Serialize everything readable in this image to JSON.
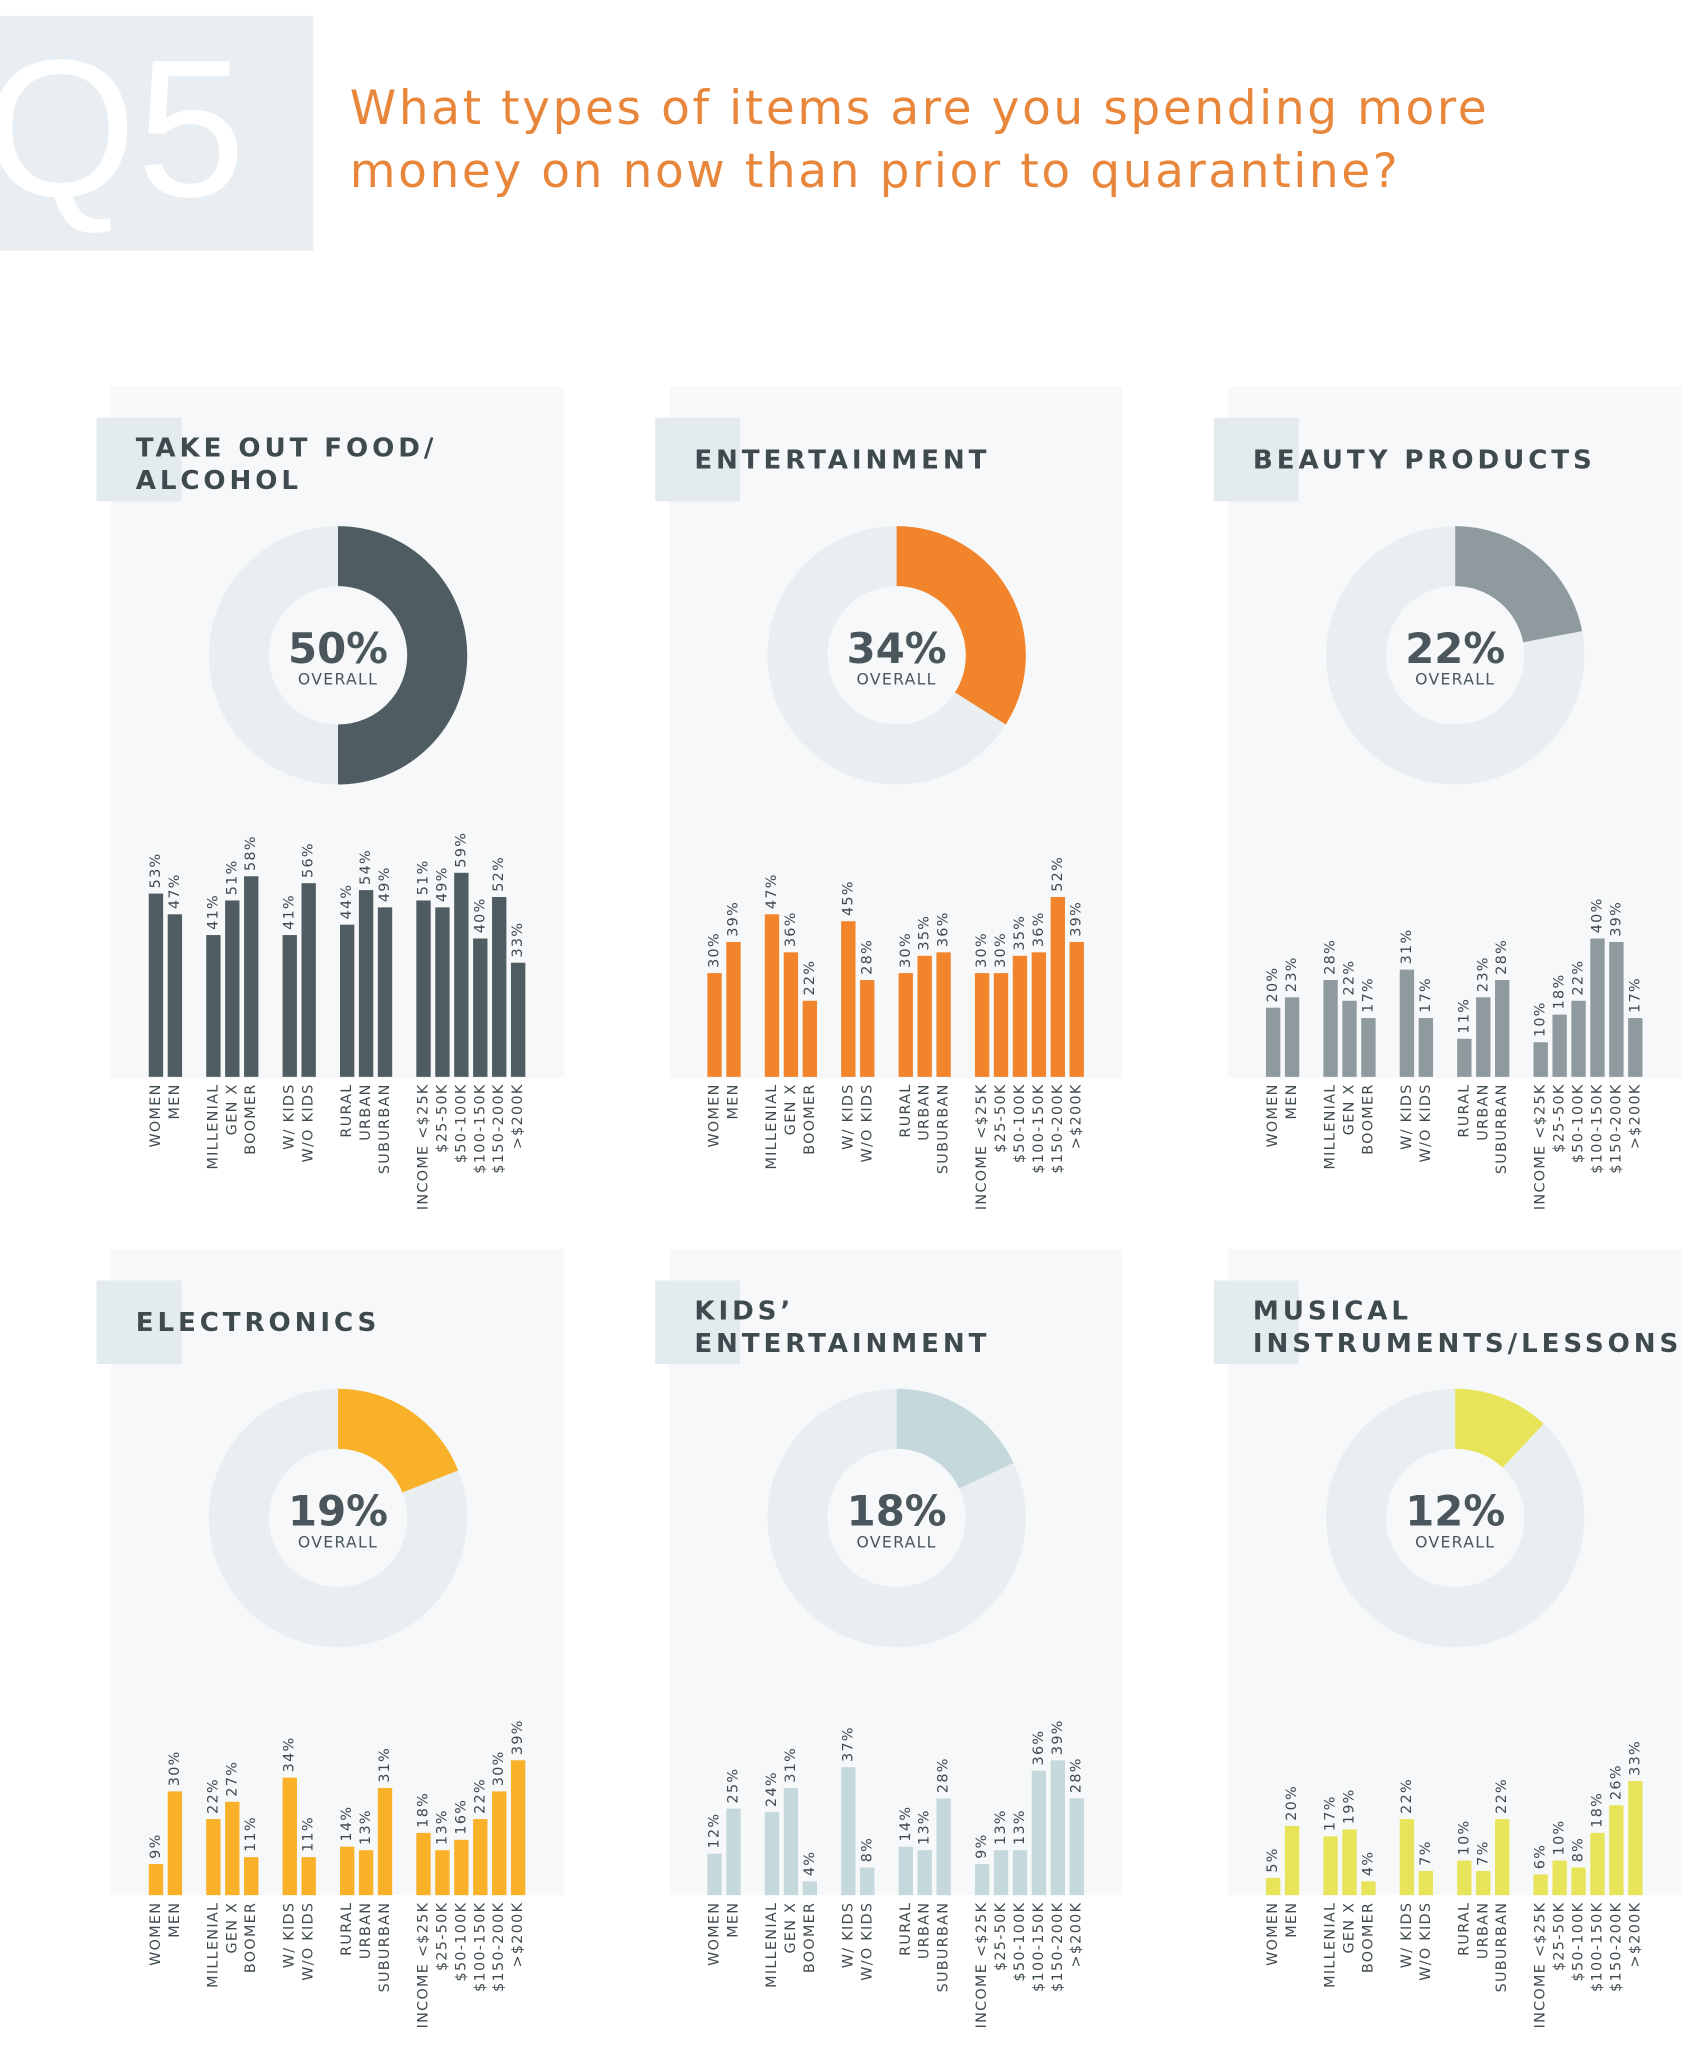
{
  "header": {
    "number": "Q5",
    "question_lines": [
      "What types of items are you spending more",
      "money on now than prior to quarantine?"
    ]
  },
  "chart_data": [
    {
      "type": "panel",
      "title_lines": [
        "TAKE OUT FOOD/",
        "ALCOHOL"
      ],
      "overall": 50,
      "overall_label": "50%",
      "overall_caption": "OVERALL",
      "color": "#4f5d62",
      "categories": [
        "WOMEN",
        "MEN",
        "MILLENIAL",
        "GEN X",
        "BOOMER",
        "W/ KIDS",
        "W/O KIDS",
        "RURAL",
        "URBAN",
        "SUBURBAN",
        "INCOME <$25K",
        "$25-50K",
        "$50-100K",
        "$100-150K",
        "$150-200K",
        ">$200K"
      ],
      "values": [
        53,
        47,
        41,
        51,
        58,
        41,
        56,
        44,
        54,
        49,
        51,
        49,
        59,
        40,
        52,
        33
      ],
      "value_labels": [
        "53%",
        "47%",
        "41%",
        "51%",
        "58%",
        "41%",
        "56%",
        "44%",
        "54%",
        "49%",
        "51%",
        "49%",
        "59%",
        "40%",
        "52%",
        "33%"
      ]
    },
    {
      "type": "panel",
      "title_lines": [
        "ENTERTAINMENT"
      ],
      "overall": 34,
      "overall_label": "34%",
      "overall_caption": "OVERALL",
      "color": "#f2842b",
      "categories": [
        "WOMEN",
        "MEN",
        "MILLENIAL",
        "GEN X",
        "BOOMER",
        "W/ KIDS",
        "W/O KIDS",
        "RURAL",
        "URBAN",
        "SUBURBAN",
        "INCOME <$25K",
        "$25-50K",
        "$50-100K",
        "$100-150K",
        "$150-200K",
        ">$200K"
      ],
      "values": [
        30,
        39,
        47,
        36,
        22,
        45,
        28,
        30,
        35,
        36,
        30,
        30,
        35,
        36,
        52,
        39
      ],
      "value_labels": [
        "30%",
        "39%",
        "47%",
        "36%",
        "22%",
        "45%",
        "28%",
        "30%",
        "35%",
        "36%",
        "30%",
        "30%",
        "35%",
        "36%",
        "52%",
        "39%"
      ]
    },
    {
      "type": "panel",
      "title_lines": [
        "BEAUTY PRODUCTS"
      ],
      "overall": 22,
      "overall_label": "22%",
      "overall_caption": "OVERALL",
      "color": "#8e9a9d",
      "categories": [
        "WOMEN",
        "MEN",
        "MILLENIAL",
        "GEN X",
        "BOOMER",
        "W/ KIDS",
        "W/O KIDS",
        "RURAL",
        "URBAN",
        "SUBURBAN",
        "INCOME <$25K",
        "$25-50K",
        "$50-100K",
        "$100-150K",
        "$150-200K",
        ">$200K"
      ],
      "values": [
        20,
        23,
        28,
        22,
        17,
        31,
        17,
        11,
        23,
        28,
        10,
        18,
        22,
        40,
        39,
        17
      ],
      "value_labels": [
        "20%",
        "23%",
        "28%",
        "22%",
        "17%",
        "31%",
        "17%",
        "11%",
        "23%",
        "28%",
        "10%",
        "18%",
        "22%",
        "40%",
        "39%",
        "17%"
      ]
    },
    {
      "type": "panel",
      "title_lines": [
        "ELECTRONICS"
      ],
      "overall": 19,
      "overall_label": "19%",
      "overall_caption": "OVERALL",
      "color": "#f8b128",
      "categories": [
        "WOMEN",
        "MEN",
        "MILLENIAL",
        "GEN X",
        "BOOMER",
        "W/ KIDS",
        "W/O KIDS",
        "RURAL",
        "URBAN",
        "SUBURBAN",
        "INCOME <$25K",
        "$25-50K",
        "$50-100K",
        "$100-150K",
        "$150-200K",
        ">$200K"
      ],
      "values": [
        9,
        30,
        22,
        27,
        11,
        34,
        11,
        14,
        13,
        31,
        18,
        13,
        16,
        22,
        30,
        39
      ],
      "value_labels": [
        "9%",
        "30%",
        "22%",
        "27%",
        "11%",
        "34%",
        "11%",
        "14%",
        "13%",
        "31%",
        "18%",
        "13%",
        "16%",
        "22%",
        "30%",
        "39%"
      ]
    },
    {
      "type": "panel",
      "title_lines": [
        "KIDS’",
        "ENTERTAINMENT"
      ],
      "overall": 18,
      "overall_label": "18%",
      "overall_caption": "OVERALL",
      "color": "#c5d9dc",
      "categories": [
        "WOMEN",
        "MEN",
        "MILLENIAL",
        "GEN X",
        "BOOMER",
        "W/ KIDS",
        "W/O KIDS",
        "RURAL",
        "URBAN",
        "SUBURBAN",
        "INCOME <$25K",
        "$25-50K",
        "$50-100K",
        "$100-150K",
        "$150-200K",
        ">$200K"
      ],
      "values": [
        12,
        25,
        24,
        31,
        4,
        37,
        8,
        14,
        13,
        28,
        9,
        13,
        13,
        36,
        39,
        28
      ],
      "value_labels": [
        "12%",
        "25%",
        "24%",
        "31%",
        "4%",
        "37%",
        "8%",
        "14%",
        "13%",
        "28%",
        "9%",
        "13%",
        "13%",
        "36%",
        "39%",
        "28%"
      ]
    },
    {
      "type": "panel",
      "title_lines": [
        "MUSICAL",
        "INSTRUMENTS/LESSONS"
      ],
      "overall": 12,
      "overall_label": "12%",
      "overall_caption": "OVERALL",
      "color": "#e8e45a",
      "categories": [
        "WOMEN",
        "MEN",
        "MILLENIAL",
        "GEN X",
        "BOOMER",
        "W/ KIDS",
        "W/O KIDS",
        "RURAL",
        "URBAN",
        "SUBURBAN",
        "INCOME <$25K",
        "$25-50K",
        "$50-100K",
        "$100-150K",
        "$150-200K",
        ">$200K"
      ],
      "values": [
        5,
        20,
        17,
        19,
        4,
        22,
        7,
        10,
        7,
        22,
        6,
        10,
        8,
        18,
        26,
        33
      ],
      "value_labels": [
        "5%",
        "20%",
        "17%",
        "19%",
        "4%",
        "22%",
        "7%",
        "10%",
        "7%",
        "22%",
        "6%",
        "10%",
        "8%",
        "18%",
        "26%",
        "33%"
      ]
    }
  ]
}
